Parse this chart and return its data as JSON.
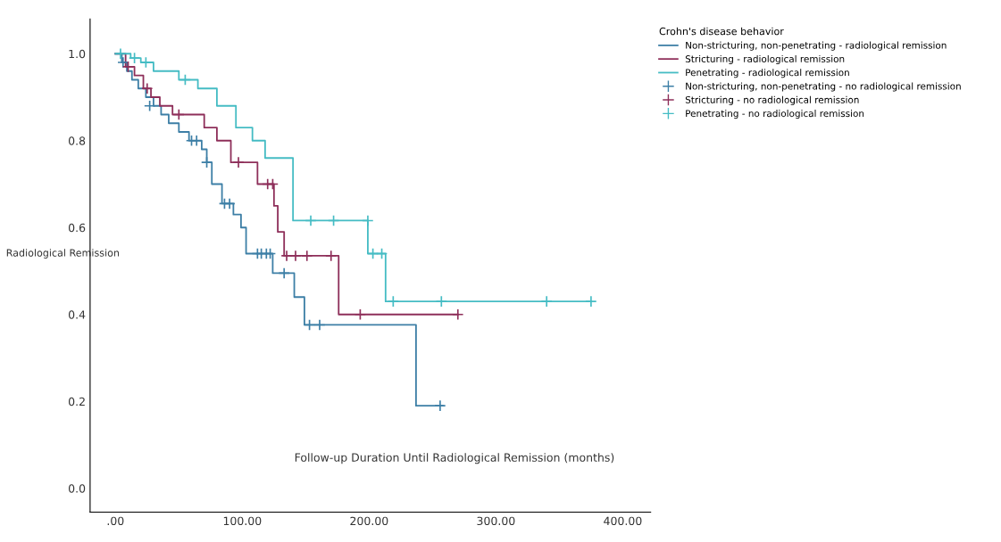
{
  "chart_data": {
    "type": "step",
    "xlabel": "Follow-up Duration Until Radiological Remission (months)",
    "ylabel": "Radiological Remission",
    "legend_title": "Crohn's disease behavior",
    "legend": "right",
    "grid": false,
    "xlim": [
      -20,
      422
    ],
    "ylim": [
      -0.055,
      1.08
    ],
    "xticks": [
      {
        "value": 0,
        "label": ".00"
      },
      {
        "value": 100,
        "label": "100.00"
      },
      {
        "value": 200,
        "label": "200.00"
      },
      {
        "value": 300,
        "label": "300.00"
      },
      {
        "value": 400,
        "label": "400.00"
      }
    ],
    "yticks": [
      {
        "value": 0,
        "label": "0.0"
      },
      0.2,
      0.4,
      0.6,
      0.8,
      {
        "value": 1,
        "label": "1.0"
      }
    ],
    "series": [
      {
        "name": "Non-stricturing, non-penetrating - radiological remission",
        "color": "#3d7fa6",
        "x": [
          0,
          5,
          9,
          13,
          18,
          24,
          30,
          36,
          42,
          50,
          58,
          68,
          72,
          76,
          84,
          93,
          99,
          103,
          124,
          141,
          149,
          237,
          258
        ],
        "values": [
          1.0,
          0.98,
          0.96,
          0.94,
          0.92,
          0.9,
          0.88,
          0.86,
          0.84,
          0.82,
          0.8,
          0.78,
          0.75,
          0.7,
          0.655,
          0.63,
          0.6,
          0.54,
          0.495,
          0.44,
          0.376,
          0.19,
          0.19
        ]
      },
      {
        "name": "Stricturing - radiological remission",
        "color": "#8e2f5a",
        "x": [
          0,
          8,
          15,
          22,
          28,
          35,
          45,
          70,
          80,
          91,
          112,
          125,
          128,
          133,
          176,
          270
        ],
        "values": [
          1.0,
          0.97,
          0.95,
          0.92,
          0.9,
          0.88,
          0.86,
          0.83,
          0.8,
          0.75,
          0.7,
          0.65,
          0.59,
          0.535,
          0.4,
          0.4
        ]
      },
      {
        "name": "Penetrating - radiological remission",
        "color": "#45bcc4",
        "x": [
          0,
          12,
          20,
          30,
          50,
          65,
          80,
          95,
          108,
          118,
          140,
          199,
          213,
          375
        ],
        "values": [
          1.0,
          0.99,
          0.98,
          0.96,
          0.94,
          0.92,
          0.88,
          0.83,
          0.8,
          0.76,
          0.616,
          0.54,
          0.43,
          0.43
        ]
      },
      {
        "name": "Non-stricturing, non-penetrating - no radiological remission",
        "type": "scatter",
        "marker": "cross",
        "color": "#3d7fa6",
        "x": [
          6,
          27,
          60,
          64,
          72,
          86,
          90,
          112,
          115,
          119,
          122,
          133,
          153,
          161,
          256
        ],
        "values": [
          0.98,
          0.88,
          0.8,
          0.8,
          0.75,
          0.655,
          0.655,
          0.54,
          0.54,
          0.54,
          0.54,
          0.495,
          0.376,
          0.376,
          0.19
        ]
      },
      {
        "name": "Stricturing - no radiological remission",
        "type": "scatter",
        "marker": "cross",
        "color": "#8e2f5a",
        "x": [
          10,
          25,
          50,
          97,
          120,
          124,
          135,
          142,
          151,
          170,
          193,
          270
        ],
        "values": [
          0.97,
          0.92,
          0.86,
          0.75,
          0.7,
          0.7,
          0.535,
          0.535,
          0.535,
          0.535,
          0.4,
          0.4
        ]
      },
      {
        "name": "Penetrating - no radiological remission",
        "type": "scatter",
        "marker": "cross",
        "color": "#45bcc4",
        "x": [
          4,
          15,
          24,
          55,
          154,
          172,
          199,
          203,
          210,
          219,
          257,
          340,
          375
        ],
        "values": [
          1.0,
          0.99,
          0.98,
          0.94,
          0.616,
          0.616,
          0.616,
          0.54,
          0.54,
          0.43,
          0.43,
          0.43,
          0.43
        ]
      }
    ]
  }
}
